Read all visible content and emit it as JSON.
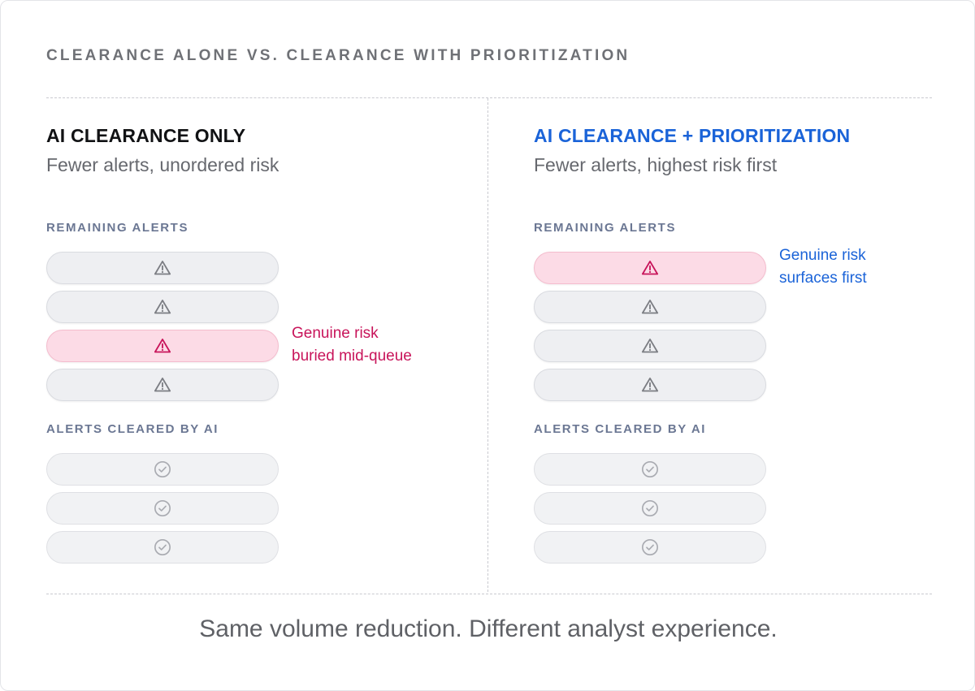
{
  "header": {
    "title": "CLEARANCE ALONE VS. CLEARANCE WITH PRIORITIZATION"
  },
  "left": {
    "title": "AI CLEARANCE ONLY",
    "subtitle": "Fewer alerts, unordered risk",
    "remaining_label": "REMAINING ALERTS",
    "cleared_label": "ALERTS CLEARED BY AI",
    "remaining": [
      {
        "icon": "warning-icon",
        "risk": false
      },
      {
        "icon": "warning-icon",
        "risk": false
      },
      {
        "icon": "warning-icon",
        "risk": true
      },
      {
        "icon": "warning-icon",
        "risk": false
      }
    ],
    "cleared": [
      {
        "icon": "check-circle-icon"
      },
      {
        "icon": "check-circle-icon"
      },
      {
        "icon": "check-circle-icon"
      }
    ],
    "annotation": [
      "Genuine risk",
      "buried mid-queue"
    ]
  },
  "right": {
    "title": "AI CLEARANCE + PRIORITIZATION",
    "subtitle": "Fewer alerts, highest risk first",
    "remaining_label": "REMAINING ALERTS",
    "cleared_label": "ALERTS CLEARED BY AI",
    "remaining": [
      {
        "icon": "warning-icon",
        "risk": true
      },
      {
        "icon": "warning-icon",
        "risk": false
      },
      {
        "icon": "warning-icon",
        "risk": false
      },
      {
        "icon": "warning-icon",
        "risk": false
      }
    ],
    "cleared": [
      {
        "icon": "check-circle-icon"
      },
      {
        "icon": "check-circle-icon"
      },
      {
        "icon": "check-circle-icon"
      }
    ],
    "annotation": [
      "Genuine risk",
      "surfaces first"
    ]
  },
  "footer": {
    "text": "Same volume reduction. Different analyst experience."
  },
  "colors": {
    "accent_blue": "#1a63d8",
    "risk_pink": "#c8145a",
    "risk_fill": "#fcdbe6",
    "neutral_icon": "#7b7d83",
    "cleared_icon": "#a9abb1"
  }
}
